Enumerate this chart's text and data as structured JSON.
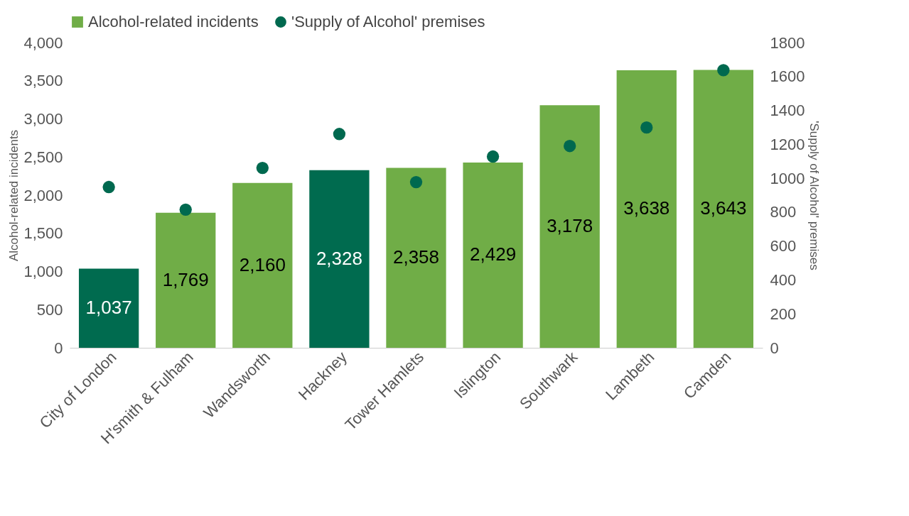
{
  "chart_data": {
    "type": "bar",
    "categories": [
      "City of London",
      "H'smith & Fulham",
      "Wandsworth",
      "Hackney",
      "Tower Hamlets",
      "Islington",
      "Southwark",
      "Lambeth",
      "Camden"
    ],
    "ylabel": "Alcohol-related incidents",
    "y2label": "'Supply of Alcohol' premises",
    "ylim": [
      0,
      4000
    ],
    "yticks": [
      0,
      {
        "value": 500,
        "label": "500"
      },
      {
        "value": 1000,
        "label": "1,000"
      },
      {
        "value": 1500,
        "label": "1,500"
      },
      {
        "value": 2000,
        "label": "2,000"
      },
      {
        "value": 2500,
        "label": "2,500"
      },
      {
        "value": 3000,
        "label": "3,000"
      },
      {
        "value": 3500,
        "label": "3,500"
      },
      {
        "value": 4000,
        "label": "4,000"
      }
    ],
    "y2lim": [
      0,
      1800
    ],
    "y2ticks": [
      0,
      200,
      400,
      600,
      800,
      1000,
      1200,
      1400,
      1600,
      1800
    ],
    "series": [
      {
        "name": "Alcohol-related incidents",
        "color": "#70ad47",
        "value_labels": [
          "1,037",
          "1,769",
          "2,160",
          "2,328",
          "2,358",
          "2,429",
          "3,178",
          "3,638",
          "3,643"
        ],
        "colors": [
          "#006b4f",
          "#70ad47",
          "#70ad47",
          "#006b4f",
          "#70ad47",
          "#70ad47",
          "#70ad47",
          "#70ad47",
          "#70ad47"
        ],
        "values": [
          1037,
          1769,
          2160,
          2328,
          2358,
          2429,
          3178,
          3638,
          3643
        ]
      },
      {
        "name": "'Supply of Alcohol' premises",
        "type": "scatter",
        "axis": "y2",
        "color": "#00694f",
        "marker": "circle",
        "values": [
          948,
          815,
          1061,
          1261,
          977,
          1128,
          1190,
          1299,
          1637
        ]
      }
    ],
    "grid": false,
    "legend": "top"
  }
}
